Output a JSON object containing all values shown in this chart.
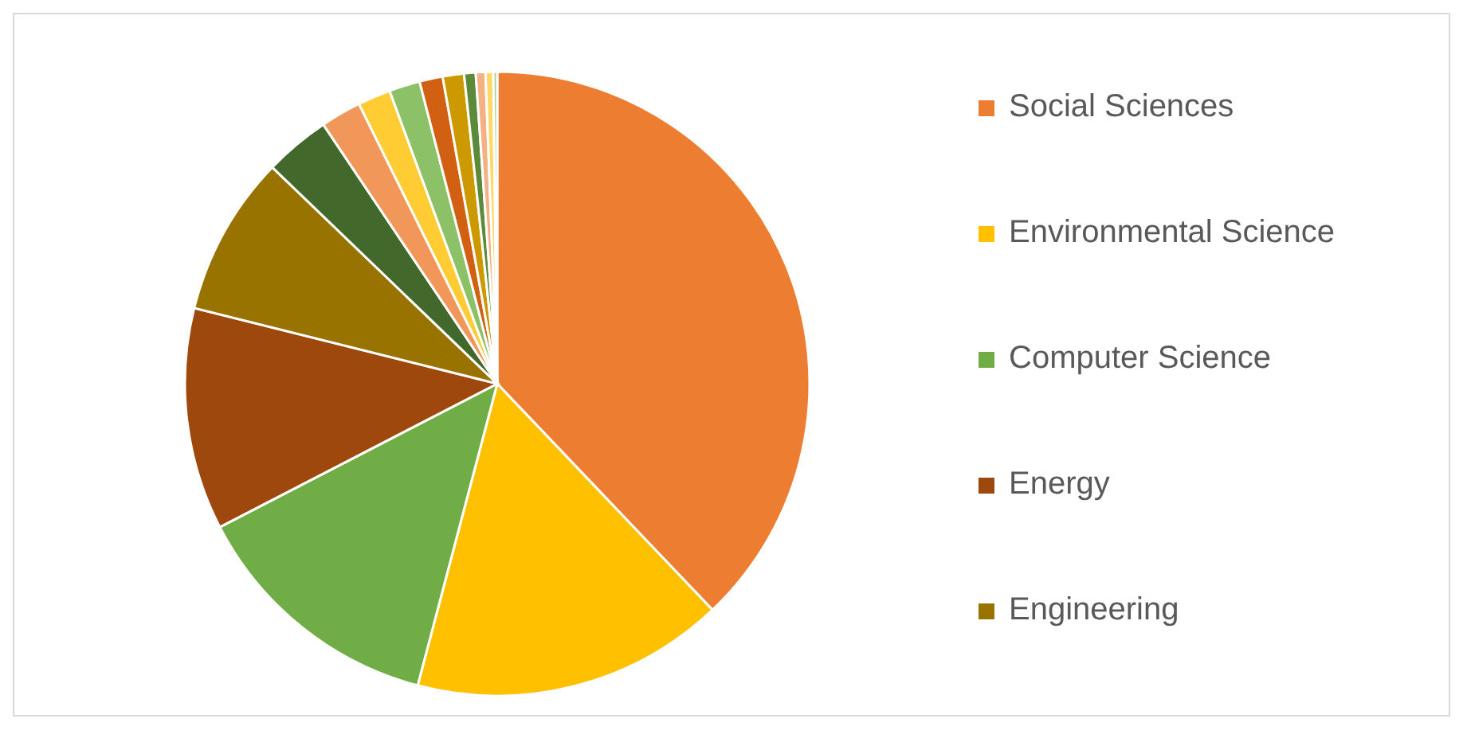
{
  "chart_data": {
    "type": "pie",
    "categories": [
      "Social Sciences",
      "Environmental Science",
      "Computer Science",
      "Energy",
      "Engineering",
      null,
      null,
      null,
      null,
      null,
      null,
      null,
      null,
      null,
      null
    ],
    "values": [
      37.9,
      16.2,
      13.3,
      11.5,
      8.3,
      3.4,
      2.1,
      1.7,
      1.6,
      1.2,
      1.1,
      0.6,
      0.5,
      0.4,
      0.2
    ],
    "colors": [
      "#ed7d31",
      "#ffc000",
      "#70ad47",
      "#9e480e",
      "#997300",
      "#43682b",
      "#f1975a",
      "#ffcd33",
      "#8cc168",
      "#d26012",
      "#cc9a00",
      "#5a8a3a",
      "#f4b183",
      "#ffd966",
      "#a9d18e"
    ],
    "legend": "right"
  }
}
